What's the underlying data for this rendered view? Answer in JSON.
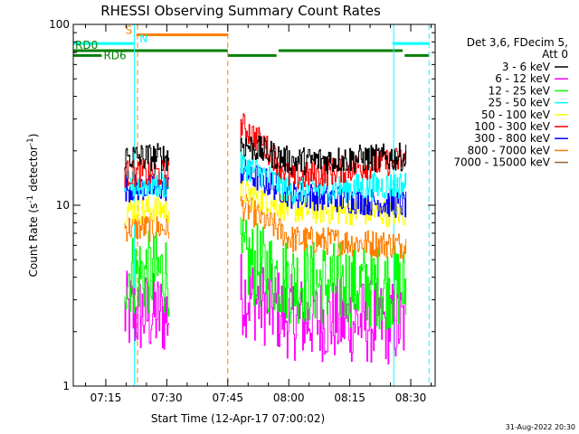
{
  "chart_data": {
    "type": "line",
    "title": "RHESSI Observing Summary Count Rates",
    "xlabel": "Start Time (12-Apr-17 07:00:02)",
    "ylabel": "Count Rate (s",
    "ylabel_sup": "-1",
    "ylabel_tail": " detector",
    "ylabel_sup2": "-1",
    "ylabel_end": ")",
    "y_scale": "log",
    "ylim": [
      1,
      100
    ],
    "xlim_minutes": [
      7.0,
      96.0
    ],
    "y_ticks": [
      {
        "value": 1,
        "label": "1"
      },
      {
        "value": 10,
        "label": "10"
      },
      {
        "value": 100,
        "label": "100"
      }
    ],
    "x_ticks": [
      {
        "minute": 15,
        "label": "07:15"
      },
      {
        "minute": 30,
        "label": "07:30"
      },
      {
        "minute": 45,
        "label": "07:45"
      },
      {
        "minute": 60,
        "label": "08:00"
      },
      {
        "minute": 75,
        "label": "08:15"
      },
      {
        "minute": 90,
        "label": "08:30"
      }
    ],
    "legend": {
      "placement": "right",
      "header": [
        "Det 3,6, FDecim 5,",
        "Att 0"
      ],
      "entries": [
        {
          "label": "3 - 6 keV",
          "color": "#000000"
        },
        {
          "label": "6 - 12 keV",
          "color": "#ff00ff"
        },
        {
          "label": "12 - 25 keV",
          "color": "#00ff00"
        },
        {
          "label": "25 - 50 keV",
          "color": "#00ffff"
        },
        {
          "label": "50 - 100 keV",
          "color": "#ffff00"
        },
        {
          "label": "100 - 300 keV",
          "color": "#ff0000"
        },
        {
          "label": "300 - 800 keV",
          "color": "#0000ff"
        },
        {
          "label": "800 - 7000 keV",
          "color": "#ff8000"
        },
        {
          "label": "7000 - 15000 keV",
          "color": "#996633"
        }
      ]
    },
    "segments_minutes": [
      [
        19.5,
        30.5
      ],
      [
        48.0,
        89.0
      ]
    ],
    "series": [
      {
        "name": "3 - 6 keV",
        "color": "#000000",
        "seg1": 18.5,
        "seg2_start": 22,
        "seg2_mid": 17.5,
        "seg2_end": 18.5
      },
      {
        "name": "100 - 300 keV",
        "color": "#ff0000",
        "seg1": 15,
        "seg2_start": 28,
        "seg2_mid": 14,
        "seg2_end": 18
      },
      {
        "name": "25 - 50 keV",
        "color": "#00ffff",
        "seg1": 13,
        "seg2_start": 17,
        "seg2_mid": 12,
        "seg2_end": 13
      },
      {
        "name": "300 - 800 keV",
        "color": "#0000ff",
        "seg1": 12.5,
        "seg2_start": 15.5,
        "seg2_mid": 11.5,
        "seg2_end": 10
      },
      {
        "name": "50 - 100 keV",
        "color": "#ffff00",
        "seg1": 9.5,
        "seg2_start": 12,
        "seg2_mid": 9.5,
        "seg2_end": 9
      },
      {
        "name": "800 - 7000 keV",
        "color": "#ff8000",
        "seg1": 7.5,
        "seg2_start": 10,
        "seg2_mid": 6.5,
        "seg2_end": 6
      },
      {
        "name": "12 - 25 keV",
        "color": "#00ff00",
        "seg1": 4.2,
        "seg2_start": 5,
        "seg2_mid": 3.8,
        "seg2_end": 3.5
      },
      {
        "name": "6 - 12 keV",
        "color": "#ff00ff",
        "seg1": 2.5,
        "seg2_start": 3.3,
        "seg2_mid": 2.4,
        "seg2_end": 2.2
      }
    ],
    "flags": [
      {
        "label": "S",
        "color": "#ff8000",
        "y": 87,
        "spans": [
          [
            22.5,
            45.0
          ]
        ]
      },
      {
        "label": "N",
        "color": "#00ffff",
        "y": 76,
        "spans": [
          [
            7.0,
            22.0
          ],
          [
            85.5,
            94.5
          ]
        ]
      },
      {
        "label": "RD0",
        "color": "#008000",
        "y": 67,
        "spans": [
          [
            7.0,
            45.0
          ],
          [
            57.5,
            88.0
          ]
        ]
      },
      {
        "label": "RD6",
        "color": "#008000",
        "y": 61,
        "spans": [
          [
            7.0,
            14.0
          ],
          [
            45.0,
            57.0
          ],
          [
            88.5,
            94.5
          ]
        ]
      }
    ],
    "vlines": [
      {
        "minute": 22.0,
        "color": "#00ffff",
        "style": "solid"
      },
      {
        "minute": 22.8,
        "color": "#ff8000",
        "style": "dashed"
      },
      {
        "minute": 45.0,
        "color": "#ff8000",
        "style": "dashed"
      },
      {
        "minute": 85.8,
        "color": "#00ffff",
        "style": "solid"
      },
      {
        "minute": 94.5,
        "color": "#00ffff",
        "style": "dashed"
      }
    ],
    "footer_date": "31-Aug-2022 20:30"
  }
}
